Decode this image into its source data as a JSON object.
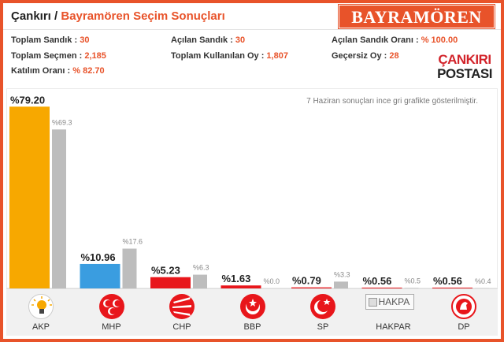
{
  "header": {
    "title_prefix": "Çankırı / ",
    "title_accent": "Bayramören Seçim Sonuçları",
    "badge": "BAYRAMÖREN"
  },
  "stats": {
    "toplam_sandik": {
      "label": "Toplam Sandık : ",
      "value": "30"
    },
    "toplam_secmen": {
      "label": "Toplam Seçmen : ",
      "value": "2,185"
    },
    "katilim_orani": {
      "label": "Katılım Oranı : ",
      "value": "% 82.70"
    },
    "acilan_sandik": {
      "label": "Açılan Sandık : ",
      "value": "30"
    },
    "toplam_kullanilan": {
      "label": "Toplam Kullanılan Oy : ",
      "value": "1,807"
    },
    "acilan_orani": {
      "label": "Açılan Sandık Oranı : ",
      "value": "% 100.00"
    },
    "gecersiz": {
      "label": "Geçersiz Oy : ",
      "value": "28"
    }
  },
  "logo": {
    "line1": "ÇANKIRI",
    "line2": "POSTASI"
  },
  "chart_note": "7 Haziran sonuçları ince gri grafikte gösterilmiştir.",
  "colors": {
    "accent": "#e8532a",
    "akp": "#f7a800",
    "mhp": "#3a9de0",
    "chp": "#e8161b",
    "bbp": "#e8161b",
    "sp": "#e8161b",
    "hakpar": "#e8161b",
    "dp": "#e8161b",
    "previous": "#bdbdbd"
  },
  "chart_data": {
    "type": "bar",
    "categories": [
      "AKP",
      "MHP",
      "CHP",
      "BBP",
      "SP",
      "HAKPAR",
      "DP"
    ],
    "series": [
      {
        "values": [
          79.2,
          10.96,
          5.23,
          1.63,
          0.79,
          0.56,
          0.56
        ]
      },
      {
        "values": [
          69.3,
          17.6,
          6.3,
          0.0,
          3.3,
          0.5,
          0.4
        ]
      }
    ],
    "labels_current": [
      "%79.20",
      "%10.96",
      "%5.23",
      "%1.63",
      "%0.79",
      "%0.56",
      "%0.56"
    ],
    "labels_previous": [
      "%69.3",
      "%17.6",
      "%6.3",
      "%0.0",
      "%3.3",
      "%0.5",
      "%0.4"
    ],
    "ylim": [
      0,
      80
    ],
    "grid": false,
    "legend": "none"
  },
  "parties": [
    {
      "name": "AKP",
      "icon": "akp-lightbulb-icon"
    },
    {
      "name": "MHP",
      "icon": "mhp-crescents-icon"
    },
    {
      "name": "CHP",
      "icon": "chp-arrows-icon"
    },
    {
      "name": "BBP",
      "icon": "bbp-crescent-icon"
    },
    {
      "name": "SP",
      "icon": "sp-crescent-star-icon"
    },
    {
      "name": "HAKPAR",
      "icon": "hakpar-broken-image-icon",
      "alt": "HAKPA"
    },
    {
      "name": "DP",
      "icon": "dp-horse-icon"
    }
  ]
}
